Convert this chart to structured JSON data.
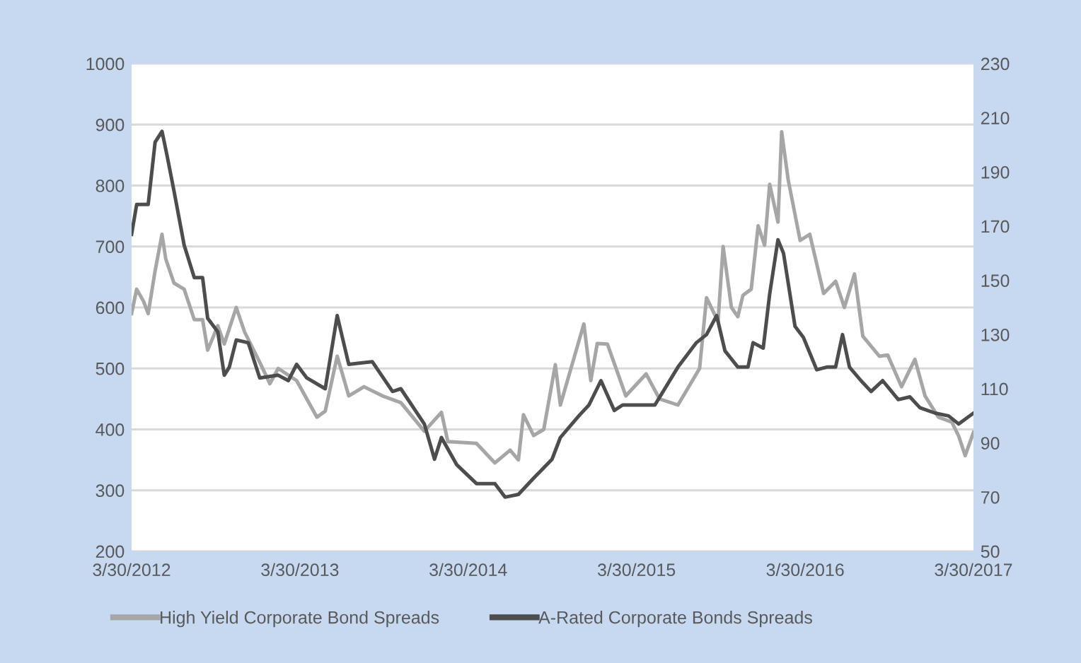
{
  "chart_data": {
    "type": "line",
    "xlim": [
      "2012-03-30",
      "2017-03-30"
    ],
    "xticks": [
      {
        "value": "2012-03-30",
        "label": "3/30/2012"
      },
      {
        "value": "2013-03-30",
        "label": "3/30/2013"
      },
      {
        "value": "2014-03-30",
        "label": "3/30/2014"
      },
      {
        "value": "2015-03-30",
        "label": "3/30/2015"
      },
      {
        "value": "2016-03-30",
        "label": "3/30/2016"
      },
      {
        "value": "2017-03-30",
        "label": "3/30/2017"
      }
    ],
    "ylim": [
      200,
      1000
    ],
    "yticks": [
      200,
      300,
      400,
      500,
      600,
      700,
      800,
      900,
      1000
    ],
    "y2lim": [
      50,
      230
    ],
    "y2ticks": [
      50,
      70,
      90,
      110,
      130,
      150,
      170,
      190,
      210,
      230
    ],
    "grid": "y",
    "legend": "bottom",
    "series": [
      {
        "name": "High Yield Corporate Bond Spreads",
        "color": "#a6a6a6",
        "x": [
          "2012-03-30",
          "2012-04-10",
          "2012-04-25",
          "2012-05-05",
          "2012-05-20",
          "2012-06-04",
          "2012-06-12",
          "2012-06-30",
          "2012-07-22",
          "2012-08-13",
          "2012-08-31",
          "2012-09-11",
          "2012-10-03",
          "2012-10-17",
          "2012-11-12",
          "2012-11-30",
          "2013-01-02",
          "2013-01-24",
          "2013-02-11",
          "2013-03-23",
          "2013-05-06",
          "2013-05-24",
          "2013-06-19",
          "2013-07-14",
          "2013-08-16",
          "2013-09-25",
          "2013-11-04",
          "2013-12-25",
          "2014-01-31",
          "2014-02-14",
          "2014-04-17",
          "2014-05-27",
          "2014-06-29",
          "2014-07-17",
          "2014-07-28",
          "2014-08-19",
          "2014-09-10",
          "2014-10-05",
          "2014-10-16",
          "2014-12-06",
          "2014-12-21",
          "2015-01-04",
          "2015-01-26",
          "2015-03-07",
          "2015-04-20",
          "2015-05-19",
          "2015-06-28",
          "2015-08-14",
          "2015-08-29",
          "2015-09-23",
          "2015-10-04",
          "2015-10-22",
          "2015-11-05",
          "2015-11-16",
          "2015-12-04",
          "2015-12-19",
          "2016-01-02",
          "2016-01-13",
          "2016-01-31",
          "2016-02-08",
          "2016-02-22",
          "2016-03-19",
          "2016-04-09",
          "2016-05-09",
          "2016-06-04",
          "2016-06-23",
          "2016-07-15",
          "2016-08-02",
          "2016-09-07",
          "2016-09-25",
          "2016-10-25",
          "2016-11-23",
          "2016-12-15",
          "2017-01-13",
          "2017-02-11",
          "2017-02-26",
          "2017-03-12",
          "2017-03-30"
        ],
        "values": [
          590,
          630,
          610,
          590,
          660,
          720,
          680,
          640,
          630,
          580,
          580,
          530,
          570,
          540,
          600,
          560,
          510,
          475,
          500,
          480,
          420,
          430,
          520,
          455,
          470,
          455,
          444,
          397,
          428,
          380,
          377,
          345,
          366,
          350,
          424,
          390,
          400,
          506,
          440,
          573,
          480,
          541,
          540,
          455,
          491,
          450,
          440,
          500,
          616,
          577,
          700,
          600,
          585,
          620,
          630,
          734,
          702,
          802,
          740,
          888,
          810,
          710,
          720,
          623,
          643,
          600,
          655,
          553,
          520,
          522,
          470,
          515,
          455,
          420,
          412,
          389,
          357,
          395
        ]
      },
      {
        "name": "A-Rated Corporate Bonds Spreads",
        "color": "#4d4d4d",
        "axis": "y2",
        "x": [
          "2012-03-30",
          "2012-04-10",
          "2012-05-05",
          "2012-05-20",
          "2012-06-04",
          "2012-06-15",
          "2012-06-30",
          "2012-07-22",
          "2012-08-13",
          "2012-08-31",
          "2012-09-11",
          "2012-10-03",
          "2012-10-17",
          "2012-10-28",
          "2012-11-12",
          "2012-12-08",
          "2013-01-02",
          "2013-02-11",
          "2013-03-05",
          "2013-03-23",
          "2013-04-14",
          "2013-05-24",
          "2013-06-19",
          "2013-07-14",
          "2013-09-03",
          "2013-10-17",
          "2013-11-04",
          "2013-12-25",
          "2014-01-16",
          "2014-01-31",
          "2014-03-05",
          "2014-04-17",
          "2014-05-27",
          "2014-06-18",
          "2014-07-17",
          "2014-08-19",
          "2014-09-28",
          "2014-10-16",
          "2014-11-25",
          "2014-12-17",
          "2015-01-12",
          "2015-02-10",
          "2015-02-28",
          "2015-03-30",
          "2015-05-09",
          "2015-06-28",
          "2015-08-07",
          "2015-08-29",
          "2015-09-20",
          "2015-10-08",
          "2015-11-05",
          "2015-11-27",
          "2015-12-08",
          "2015-12-30",
          "2016-01-13",
          "2016-01-31",
          "2016-02-12",
          "2016-03-08",
          "2016-03-26",
          "2016-04-24",
          "2016-05-16",
          "2016-06-04",
          "2016-06-19",
          "2016-07-04",
          "2016-07-29",
          "2016-08-20",
          "2016-09-14",
          "2016-10-18",
          "2016-11-12",
          "2016-12-04",
          "2017-01-06",
          "2017-02-04",
          "2017-02-26",
          "2017-03-30"
        ],
        "values": [
          167,
          178,
          178,
          201,
          205,
          196,
          183,
          163,
          151,
          151,
          136,
          131,
          115,
          118,
          128,
          127,
          114,
          115,
          113,
          119,
          114,
          110,
          137,
          119,
          120,
          109,
          110,
          97,
          84,
          92,
          82,
          75,
          75,
          70,
          71,
          77,
          84,
          92,
          100,
          104,
          113,
          102,
          104,
          104,
          104,
          118,
          127,
          130,
          137,
          124,
          118,
          118,
          127,
          125,
          145,
          165,
          160,
          133,
          129,
          117,
          118,
          118,
          130,
          118,
          113,
          109,
          113,
          106,
          107,
          103,
          101,
          100,
          97,
          101
        ]
      }
    ]
  }
}
